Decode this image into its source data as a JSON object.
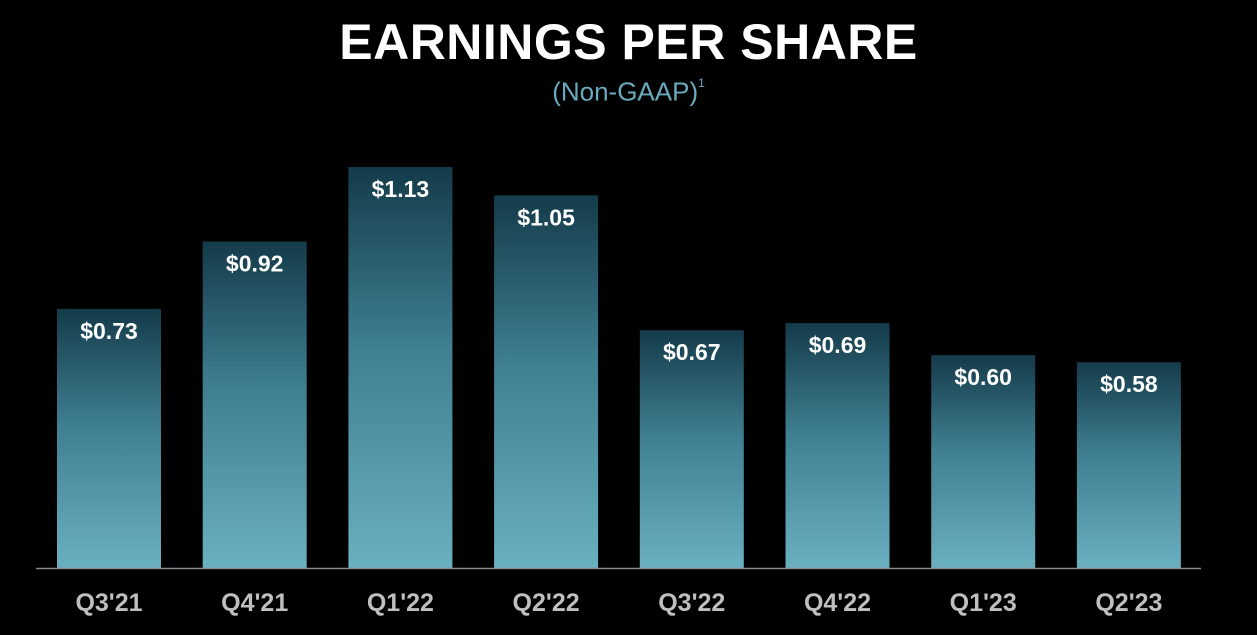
{
  "title": "EARNINGS PER SHARE",
  "subtitle": "(Non-GAAP)",
  "subtitle_footnote": "1",
  "colors": {
    "background": "#000000",
    "bar_top": "#143b4a",
    "bar_mid": "#3f7f91",
    "bar_bottom": "#6ab0c0",
    "baseline": "#8a8a8a",
    "tick_label": "#bfbfbf",
    "value_label": "#ffffff",
    "subtitle": "#6aaabd"
  },
  "chart_data": {
    "type": "bar",
    "title": "EARNINGS PER SHARE",
    "subtitle": "(Non-GAAP)",
    "categories": [
      "Q3'21",
      "Q4'21",
      "Q1'22",
      "Q2'22",
      "Q3'22",
      "Q4'22",
      "Q1'23",
      "Q2'23"
    ],
    "values": [
      0.73,
      0.92,
      1.13,
      1.05,
      0.67,
      0.69,
      0.6,
      0.58
    ],
    "data_labels": [
      "$0.73",
      "$0.92",
      "$1.13",
      "$1.05",
      "$0.67",
      "$0.69",
      "$0.60",
      "$0.58"
    ],
    "xlabel": "",
    "ylabel": "",
    "ylim": [
      0,
      1.13
    ],
    "grid": false,
    "legend": "none"
  }
}
